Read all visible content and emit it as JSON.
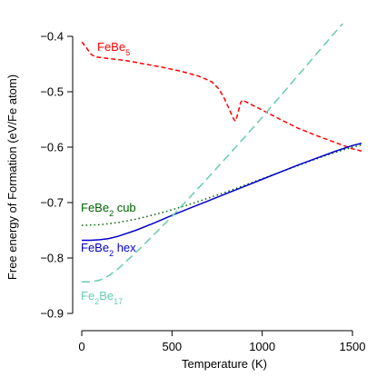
{
  "chart_data": {
    "type": "line",
    "title": "",
    "xlabel": "Temperature (K)",
    "ylabel": "Free energy of Formation (eV/Fe atom)",
    "xlim": [
      0,
      1550
    ],
    "ylim": [
      -0.9,
      -0.38
    ],
    "x_ticks": [
      0,
      500,
      1000,
      1500
    ],
    "y_ticks": [
      -0.9,
      -0.8,
      -0.7,
      -0.6,
      -0.5,
      -0.4
    ],
    "x_tick_labels": [
      "0",
      "500",
      "1000",
      "1500"
    ],
    "y_tick_labels": [
      "−0.9",
      "−0.8",
      "−0.7",
      "−0.6",
      "−0.5",
      "−0.4"
    ],
    "grid": false,
    "series": [
      {
        "label_base": "FeBe",
        "label_sub": "5",
        "color": "#ff0000",
        "dash": "short-dash",
        "points": [
          [
            0,
            -0.41
          ],
          [
            25,
            -0.42
          ],
          [
            50,
            -0.432
          ],
          [
            75,
            -0.437
          ],
          [
            150,
            -0.44
          ],
          [
            250,
            -0.444
          ],
          [
            350,
            -0.45
          ],
          [
            450,
            -0.456
          ],
          [
            550,
            -0.463
          ],
          [
            650,
            -0.472
          ],
          [
            720,
            -0.482
          ],
          [
            760,
            -0.495
          ],
          [
            790,
            -0.512
          ],
          [
            815,
            -0.53
          ],
          [
            840,
            -0.548
          ],
          [
            850,
            -0.553
          ],
          [
            860,
            -0.545
          ],
          [
            880,
            -0.52
          ],
          [
            890,
            -0.515
          ],
          [
            1000,
            -0.533
          ],
          [
            1100,
            -0.55
          ],
          [
            1200,
            -0.566
          ],
          [
            1300,
            -0.579
          ],
          [
            1400,
            -0.591
          ],
          [
            1500,
            -0.603
          ],
          [
            1550,
            -0.607
          ]
        ]
      },
      {
        "label_base": "FeBe",
        "label_sub": "2",
        "label_suffix": " cub",
        "color": "#006400",
        "dash": "dotted",
        "points": [
          [
            0,
            -0.741
          ],
          [
            100,
            -0.74
          ],
          [
            200,
            -0.736
          ],
          [
            300,
            -0.73
          ],
          [
            400,
            -0.722
          ],
          [
            500,
            -0.713
          ],
          [
            600,
            -0.703
          ],
          [
            700,
            -0.692
          ],
          [
            800,
            -0.681
          ],
          [
            900,
            -0.669
          ],
          [
            1000,
            -0.657
          ],
          [
            1100,
            -0.645
          ],
          [
            1200,
            -0.633
          ],
          [
            1300,
            -0.621
          ],
          [
            1400,
            -0.61
          ],
          [
            1500,
            -0.6
          ],
          [
            1550,
            -0.596
          ]
        ]
      },
      {
        "label_base": "FeBe",
        "label_sub": "2",
        "label_suffix": " hex",
        "color": "#0000cc",
        "dash": "solid",
        "points": [
          [
            0,
            -0.768
          ],
          [
            50,
            -0.768
          ],
          [
            100,
            -0.767
          ],
          [
            150,
            -0.765
          ],
          [
            200,
            -0.761
          ],
          [
            300,
            -0.75
          ],
          [
            400,
            -0.737
          ],
          [
            500,
            -0.723
          ],
          [
            600,
            -0.71
          ],
          [
            700,
            -0.697
          ],
          [
            800,
            -0.684
          ],
          [
            900,
            -0.671
          ],
          [
            1000,
            -0.658
          ],
          [
            1100,
            -0.645
          ],
          [
            1200,
            -0.632
          ],
          [
            1300,
            -0.62
          ],
          [
            1400,
            -0.608
          ],
          [
            1500,
            -0.597
          ],
          [
            1550,
            -0.593
          ]
        ]
      },
      {
        "label_base": "Fe",
        "label_sub": "2",
        "label_mid": "Be",
        "label_sub2": "17",
        "color": "#66ccaa",
        "dash": "long-dash",
        "points": [
          [
            0,
            -0.843
          ],
          [
            50,
            -0.843
          ],
          [
            100,
            -0.84
          ],
          [
            150,
            -0.832
          ],
          [
            200,
            -0.82
          ],
          [
            300,
            -0.79
          ],
          [
            400,
            -0.758
          ],
          [
            500,
            -0.725
          ],
          [
            600,
            -0.69
          ],
          [
            700,
            -0.655
          ],
          [
            800,
            -0.619
          ],
          [
            900,
            -0.583
          ],
          [
            1000,
            -0.546
          ],
          [
            1100,
            -0.508
          ],
          [
            1200,
            -0.47
          ],
          [
            1300,
            -0.432
          ],
          [
            1400,
            -0.394
          ],
          [
            1500,
            -0.357
          ],
          [
            1550,
            -0.339
          ]
        ]
      }
    ]
  },
  "colors": {
    "axis": "#000000"
  }
}
